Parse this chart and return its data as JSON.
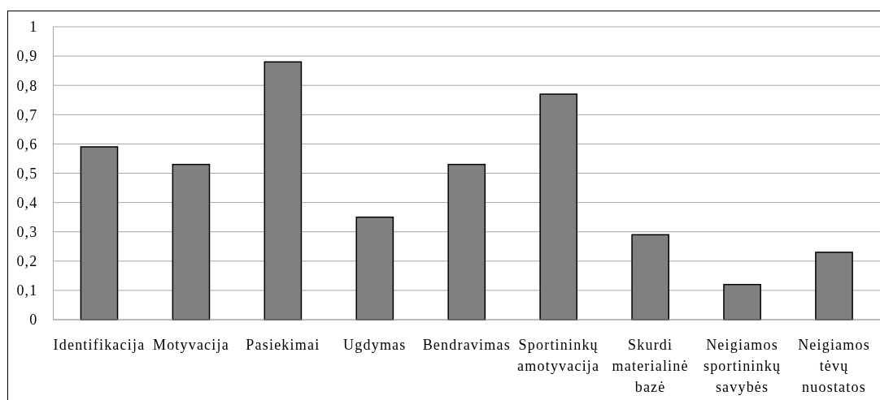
{
  "chart_data": {
    "type": "bar",
    "categories": [
      "Identifikacija",
      "Motyvacija",
      "Pasiekimai",
      "Ugdymas",
      "Bendravimas",
      "Sportininkų amotyvacija",
      "Skurdi materialinė bazė",
      "Neigiamos sportininkų savybės",
      "Neigiamos tėvų nuostatos"
    ],
    "values": [
      0.59,
      0.53,
      0.88,
      0.35,
      0.53,
      0.77,
      0.29,
      0.12,
      0.23
    ],
    "color": "#808080",
    "ylim": [
      0,
      1
    ],
    "yticks": [
      0,
      {
        "value": 0.1,
        "label": "0,1"
      },
      {
        "value": 0.2,
        "label": "0,2"
      },
      {
        "value": 0.3,
        "label": "0,3"
      },
      {
        "value": 0.4,
        "label": "0,4"
      },
      {
        "value": 0.5,
        "label": "0,5"
      },
      {
        "value": 0.6,
        "label": "0,6"
      },
      {
        "value": 0.7,
        "label": "0,7"
      },
      {
        "value": 0.8,
        "label": "0,8"
      },
      {
        "value": 0.9,
        "label": "0,9"
      },
      1
    ],
    "grid": "y"
  }
}
